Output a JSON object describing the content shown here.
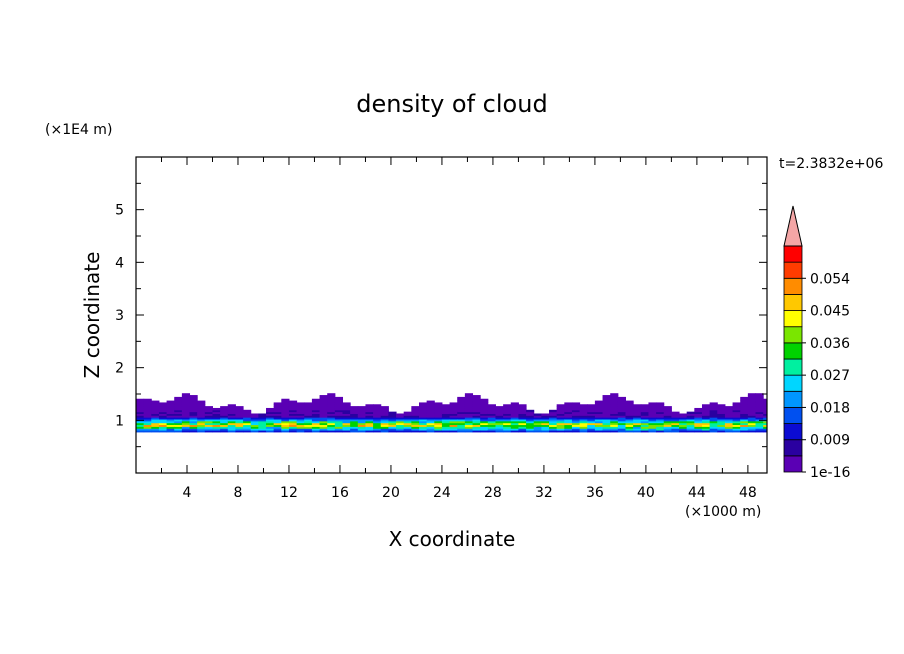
{
  "chart_data": {
    "type": "heatmap",
    "title": "density of cloud",
    "xlabel": "X coordinate",
    "ylabel": "Z coordinate",
    "x_unit": "(×1000 m)",
    "y_unit": "(×1E4 m)",
    "time_label": "t=2.3832e+06",
    "xlim": [
      0,
      49.5
    ],
    "ylim": [
      0,
      6
    ],
    "x_ticks": [
      4,
      8,
      12,
      16,
      20,
      24,
      28,
      32,
      36,
      40,
      44,
      48
    ],
    "y_ticks": [
      1,
      2,
      3,
      4,
      5
    ],
    "colorbar": {
      "levels": [
        1e-16,
        0.0045,
        0.009,
        0.0135,
        0.018,
        0.0225,
        0.027,
        0.0315,
        0.036,
        0.0405,
        0.045,
        0.0495,
        0.054,
        0.0585
      ],
      "labels": [
        "1e-16",
        "0.009",
        "0.018",
        "0.027",
        "0.036",
        "0.045",
        "0.054"
      ],
      "colors": [
        "#5a00b4",
        "#2a00a0",
        "#0b0bd2",
        "#0050f0",
        "#0096ff",
        "#00d6ff",
        "#00f0a0",
        "#00d200",
        "#7ae600",
        "#ffff00",
        "#ffc800",
        "#ff8c00",
        "#ff3c00",
        "#ff0000"
      ],
      "extend_color": "#f4a6a6"
    },
    "cloud_band": {
      "z_base": 0.78,
      "z_top": 1.3,
      "z_core": 0.9,
      "peak_density": 0.05
    }
  }
}
